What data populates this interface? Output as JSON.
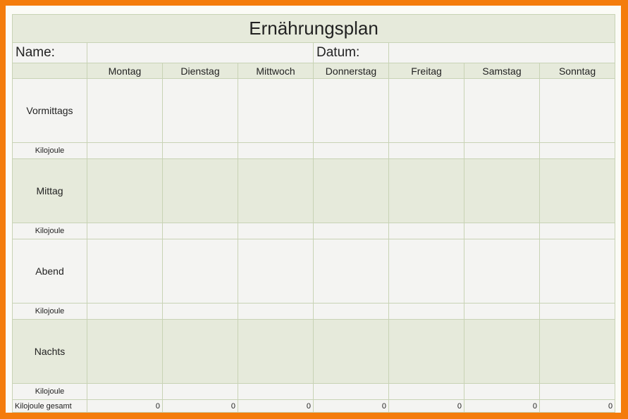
{
  "title": "Ernährungsplan",
  "name_label": "Name:",
  "date_label": "Datum:",
  "days": [
    "Montag",
    "Dienstag",
    "Mittwoch",
    "Donnerstag",
    "Freitag",
    "Samstag",
    "Sonntag"
  ],
  "meals": [
    {
      "label": "Vormittags",
      "kj_label": "Kilojoule"
    },
    {
      "label": "Mittag",
      "kj_label": "Kilojoule"
    },
    {
      "label": "Abend",
      "kj_label": "Kilojoule"
    },
    {
      "label": "Nachts",
      "kj_label": "Kilojoule"
    }
  ],
  "total_label": "Kilojoule gesamt",
  "totals": [
    "0",
    "0",
    "0",
    "0",
    "0",
    "0",
    "0"
  ],
  "colors": {
    "frame": "#f47c0c",
    "header_fill": "#e6eadb",
    "cell_fill": "#f4f4f2",
    "grid": "#c8d3b5"
  }
}
